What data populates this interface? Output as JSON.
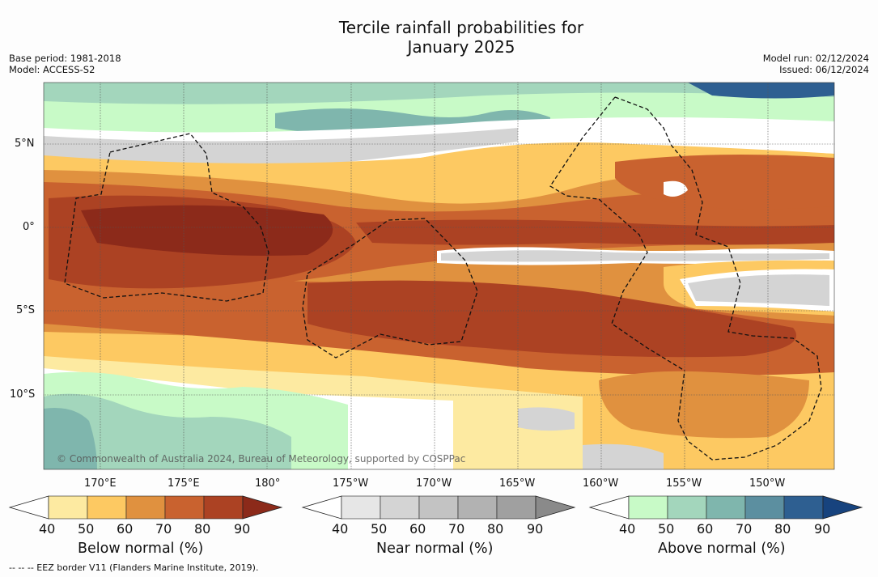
{
  "title_line1": "Tercile rainfall probabilities for",
  "title_line2": "January 2025",
  "base_period": "Base period: 1981-2018",
  "model": "Model: ACCESS-S2",
  "model_run": "Model run: 02/12/2024",
  "issued": "Issued: 06/12/2024",
  "copyright": "© Commonwealth of Australia 2024, Bureau of Meteorology, supported by COSPPac",
  "footnote": "--  --  -- EEZ border V11 (Flanders Marine Institute, 2019).",
  "lat_labels": [
    "5°N",
    "0°",
    "5°S",
    "10°S"
  ],
  "lon_labels": [
    "170°E",
    "175°E",
    "180°",
    "175°W",
    "170°W",
    "165°W",
    "160°W",
    "155°W",
    "150°W"
  ],
  "colorbars": [
    {
      "label": "Below normal (%)",
      "ticks": [
        "40",
        "50",
        "60",
        "70",
        "80",
        "90"
      ],
      "colors": [
        "#ffffff",
        "#fdeaa1",
        "#fdc962",
        "#e0913f",
        "#c9622f",
        "#ac4223",
        "#8c2a1a"
      ]
    },
    {
      "label": "Near normal (%)",
      "ticks": [
        "40",
        "50",
        "60",
        "70",
        "80",
        "90"
      ],
      "colors": [
        "#ffffff",
        "#e6e6e6",
        "#d4d4d4",
        "#c3c3c3",
        "#b2b2b2",
        "#a0a0a0",
        "#8a8a8a"
      ]
    },
    {
      "label": "Above normal (%)",
      "ticks": [
        "40",
        "50",
        "60",
        "70",
        "80",
        "90"
      ],
      "colors": [
        "#ffffff",
        "#c8fac7",
        "#a3d6bc",
        "#7fb6ad",
        "#5c8fa0",
        "#2e5f91",
        "#17437e"
      ]
    }
  ]
}
